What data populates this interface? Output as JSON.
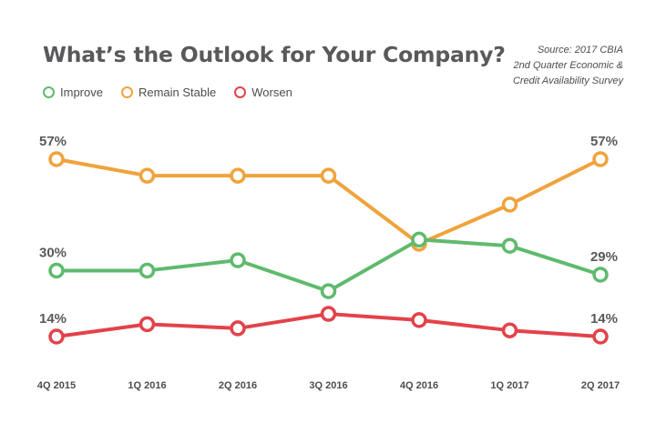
{
  "header": {
    "title": "What’s the Outlook for Your Company?",
    "source_lines": [
      "Source: 2017 CBIA",
      "2nd Quarter Economic &",
      "Credit Availability Survey"
    ]
  },
  "chart_data": {
    "type": "line",
    "title": "What’s the Outlook for Your Company?",
    "xlabel": "",
    "ylabel": "",
    "ylim": [
      10,
      60
    ],
    "grid": false,
    "legend": "top-left",
    "categories": [
      "4Q 2015",
      "1Q 2016",
      "2Q 2016",
      "3Q 2016",
      "4Q 2016",
      "1Q 2017",
      "2Q 2017"
    ],
    "series": [
      {
        "name": "Improve",
        "color": "#5fba6d",
        "values": [
          30,
          30,
          32.5,
          25,
          37.5,
          36,
          29
        ]
      },
      {
        "name": "Remain Stable",
        "color": "#f0a33c",
        "values": [
          57,
          53,
          53,
          53,
          36.5,
          46,
          57
        ]
      },
      {
        "name": "Worsen",
        "color": "#e3424a",
        "values": [
          14,
          17,
          16,
          19.5,
          18,
          15.5,
          14
        ]
      }
    ],
    "data_labels": [
      {
        "series": "Remain Stable",
        "index": 0,
        "text": "57%"
      },
      {
        "series": "Remain Stable",
        "index": 6,
        "text": "57%"
      },
      {
        "series": "Improve",
        "index": 0,
        "text": "30%"
      },
      {
        "series": "Improve",
        "index": 6,
        "text": "29%"
      },
      {
        "series": "Worsen",
        "index": 0,
        "text": "14%"
      },
      {
        "series": "Worsen",
        "index": 6,
        "text": "14%"
      }
    ]
  }
}
